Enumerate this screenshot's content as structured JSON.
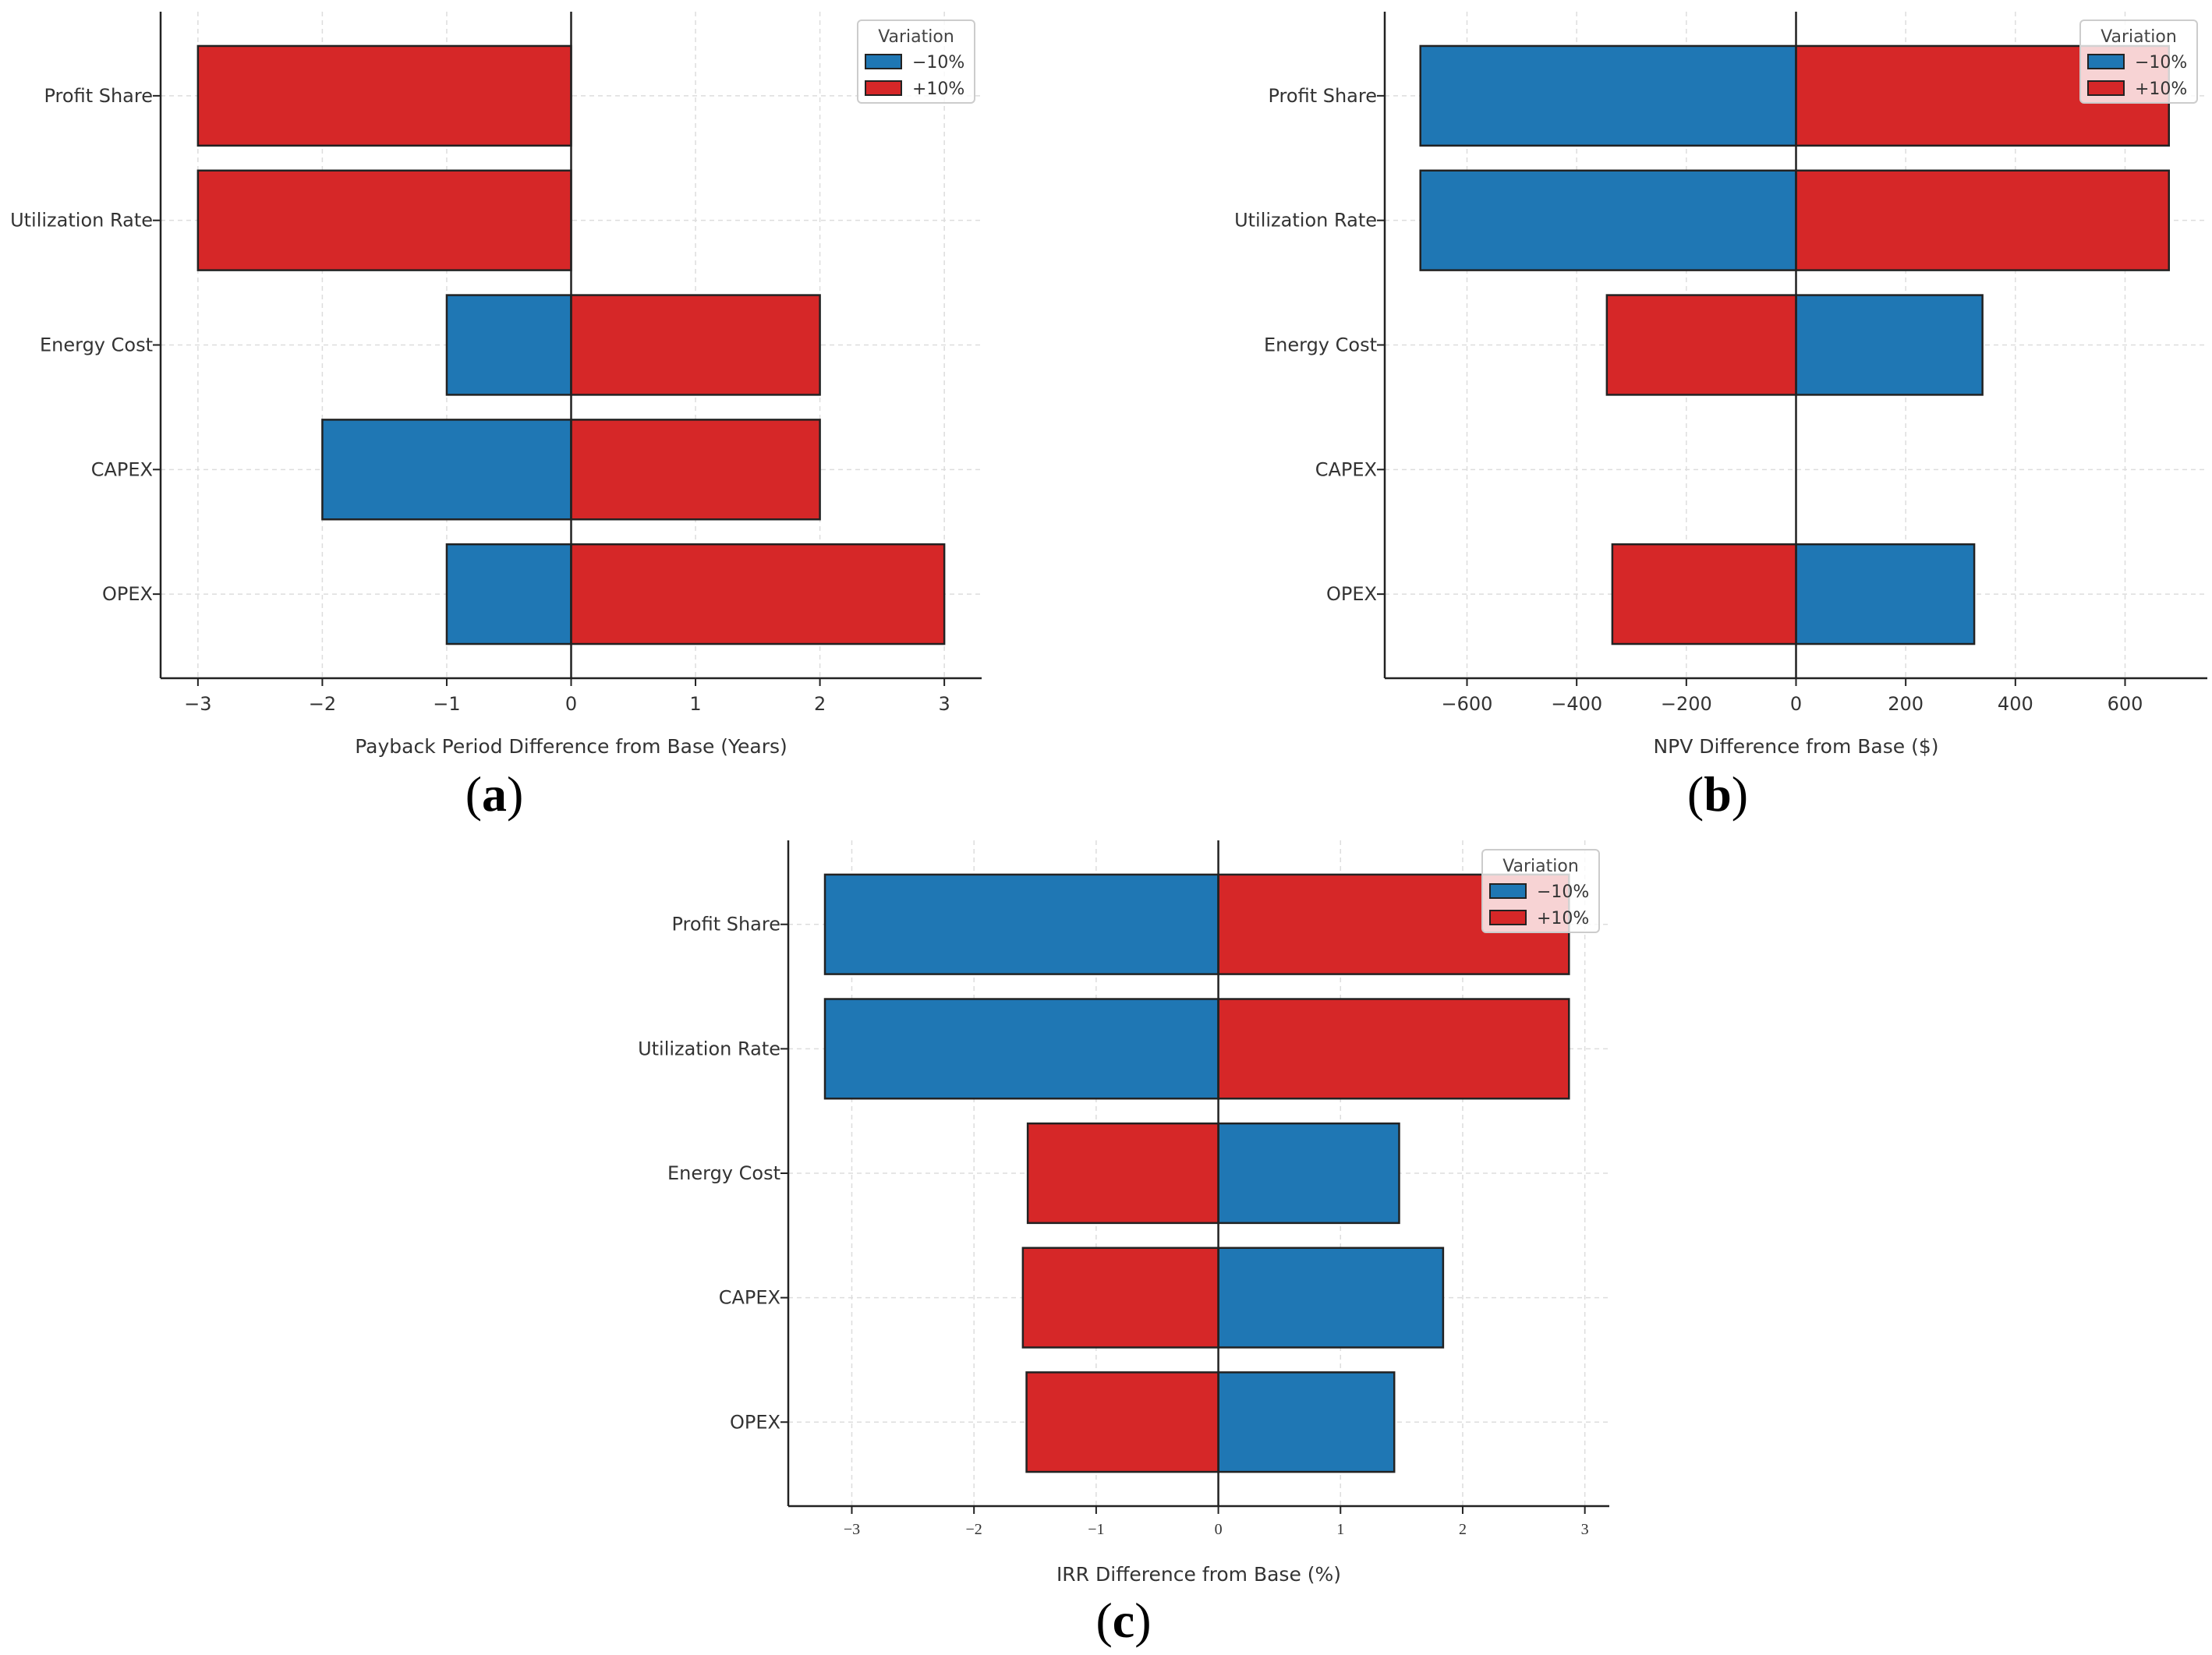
{
  "colors": {
    "minus": "#1f77b4",
    "plus": "#d62728",
    "edge": "#222222",
    "grid": "#dddddd",
    "axis": "#222222"
  },
  "chart_data": [
    {
      "type": "bar",
      "orientation": "horizontal",
      "panel_label": "(a)",
      "categories": [
        "Profit Share",
        "Utilization Rate",
        "Energy Cost",
        "CAPEX",
        "OPEX"
      ],
      "series": [
        {
          "name": "−10%",
          "values": [
            0,
            0,
            -1,
            -2,
            -1
          ]
        },
        {
          "name": "+10%",
          "values": [
            -3,
            -3,
            2,
            2,
            3
          ]
        }
      ],
      "xlabel": "Payback Period Difference from Base (Years)",
      "xlim": [
        -3.3,
        3.3
      ],
      "xticks": [
        -3,
        -2,
        -1,
        0,
        1,
        2,
        3
      ],
      "xtick_labels": [
        "−3",
        "−2",
        "−1",
        "0",
        "1",
        "2",
        "3"
      ],
      "legend": {
        "title": "Variation",
        "position": "top-right",
        "entries": [
          "−10%",
          "+10%"
        ]
      },
      "grid": true
    },
    {
      "type": "bar",
      "orientation": "horizontal",
      "panel_label": "(b)",
      "categories": [
        "Profit Share",
        "Utilization Rate",
        "Energy Cost",
        "CAPEX",
        "OPEX"
      ],
      "series": [
        {
          "name": "−10%",
          "values": [
            -685,
            -685,
            340,
            0,
            325
          ]
        },
        {
          "name": "+10%",
          "values": [
            680,
            680,
            -345,
            0,
            -335
          ]
        }
      ],
      "xlabel": "NPV Difference from Base ($)",
      "xlim": [
        -750,
        750
      ],
      "xticks": [
        -600,
        -400,
        -200,
        0,
        200,
        400,
        600
      ],
      "xtick_labels": [
        "−600",
        "−400",
        "−200",
        "0",
        "200",
        "400",
        "600"
      ],
      "legend": {
        "title": "Variation",
        "position": "top-right",
        "entries": [
          "−10%",
          "+10%"
        ]
      },
      "grid": true
    },
    {
      "type": "bar",
      "orientation": "horizontal",
      "panel_label": "(c)",
      "categories": [
        "Profit Share",
        "Utilization Rate",
        "Energy Cost",
        "CAPEX",
        "OPEX"
      ],
      "series": [
        {
          "name": "−10%",
          "values": [
            -3.22,
            -3.22,
            1.48,
            1.84,
            1.44
          ]
        },
        {
          "name": "+10%",
          "values": [
            2.87,
            2.87,
            -1.56,
            -1.6,
            -1.57
          ]
        }
      ],
      "xlabel": "IRR Difference from Base (%)",
      "xlim": [
        -3.52,
        3.2
      ],
      "xticks": [
        -3,
        -2,
        -1,
        0,
        1,
        2,
        3
      ],
      "xtick_labels": [
        "−3",
        "−2",
        "−1",
        "0",
        "1",
        "2",
        "3"
      ],
      "legend": {
        "title": "Variation",
        "position": "top-right",
        "entries": [
          "−10%",
          "+10%"
        ]
      },
      "grid": true
    }
  ]
}
